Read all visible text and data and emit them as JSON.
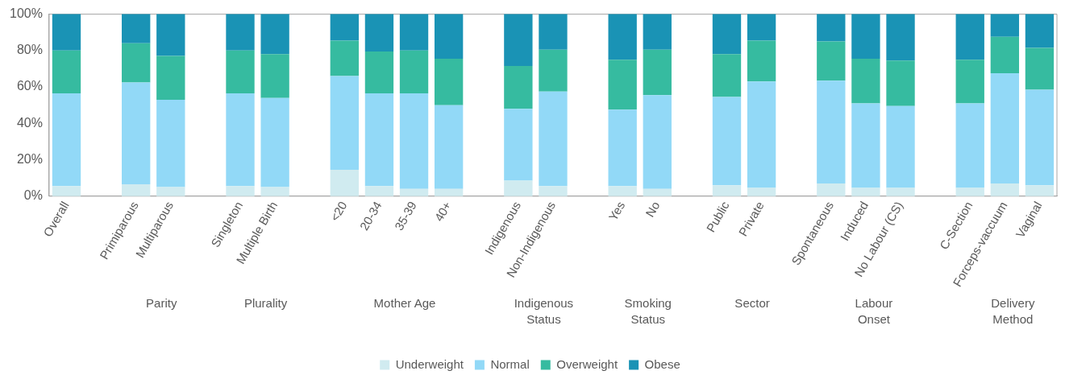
{
  "chart_data": {
    "type": "bar",
    "stacked": true,
    "categories": [
      "Overall",
      null,
      "Primiparous",
      "Multiparous",
      null,
      "Singleton",
      "Multiple Birth",
      null,
      "<20",
      "20-34",
      "35-39",
      "40+",
      null,
      "Indigenous",
      "Non-Indigenous",
      null,
      "Yes",
      "No",
      null,
      "Public",
      "Private",
      null,
      "Spontaneous",
      "Induced",
      "No Labour (CS)",
      null,
      "C-Section",
      "Forceps-vaccuum",
      "Vaginal"
    ],
    "series": [
      {
        "name": "Underweight",
        "color": "#d0ebf0",
        "values": [
          5.5,
          null,
          6.5,
          5,
          null,
          5.5,
          5,
          null,
          14.5,
          5.5,
          4,
          4,
          null,
          8.5,
          5.5,
          null,
          5.5,
          4,
          null,
          6,
          4.5,
          null,
          7,
          4.5,
          4.5,
          null,
          4.5,
          7,
          6
        ]
      },
      {
        "name": "Normal",
        "color": "#92d9f7",
        "values": [
          51,
          null,
          56,
          48,
          null,
          51,
          49,
          null,
          51.5,
          51,
          52.5,
          46,
          null,
          39.5,
          52,
          null,
          42,
          51.5,
          null,
          48.5,
          58.5,
          null,
          56.5,
          46.5,
          45,
          null,
          46.5,
          60.5,
          52.5
        ]
      },
      {
        "name": "Overweight",
        "color": "#36bba0",
        "values": [
          23.5,
          null,
          21.5,
          24,
          null,
          23.5,
          24,
          null,
          19.5,
          23,
          23.5,
          25.5,
          null,
          23.5,
          23,
          null,
          27.5,
          25,
          null,
          23.5,
          22.5,
          null,
          21.5,
          24.5,
          25,
          null,
          24,
          20,
          23
        ]
      },
      {
        "name": "Obese",
        "color": "#1a93b5",
        "values": [
          20,
          null,
          16,
          23,
          null,
          20,
          22,
          null,
          14.5,
          20.5,
          20,
          24.5,
          null,
          28.5,
          19.5,
          null,
          25,
          19.5,
          null,
          22,
          14.5,
          null,
          15,
          24.5,
          25.5,
          null,
          25,
          12.5,
          18.5
        ]
      }
    ],
    "ylim": [
      0,
      100
    ],
    "yticks": [
      {
        "value": 0,
        "label": "0%"
      },
      {
        "value": 20,
        "label": "20%"
      },
      {
        "value": 40,
        "label": "40%"
      },
      {
        "value": 60,
        "label": "60%"
      },
      {
        "value": 80,
        "label": "80%"
      },
      {
        "value": 100,
        "label": "100%"
      }
    ],
    "grid": false,
    "legend": "bottom",
    "annotations": [
      "Parity",
      "Plurality",
      "Mother Age",
      "Indigenous Status",
      "Smoking Status",
      "Sector",
      "Labour Onset",
      "Delivery Method"
    ]
  }
}
